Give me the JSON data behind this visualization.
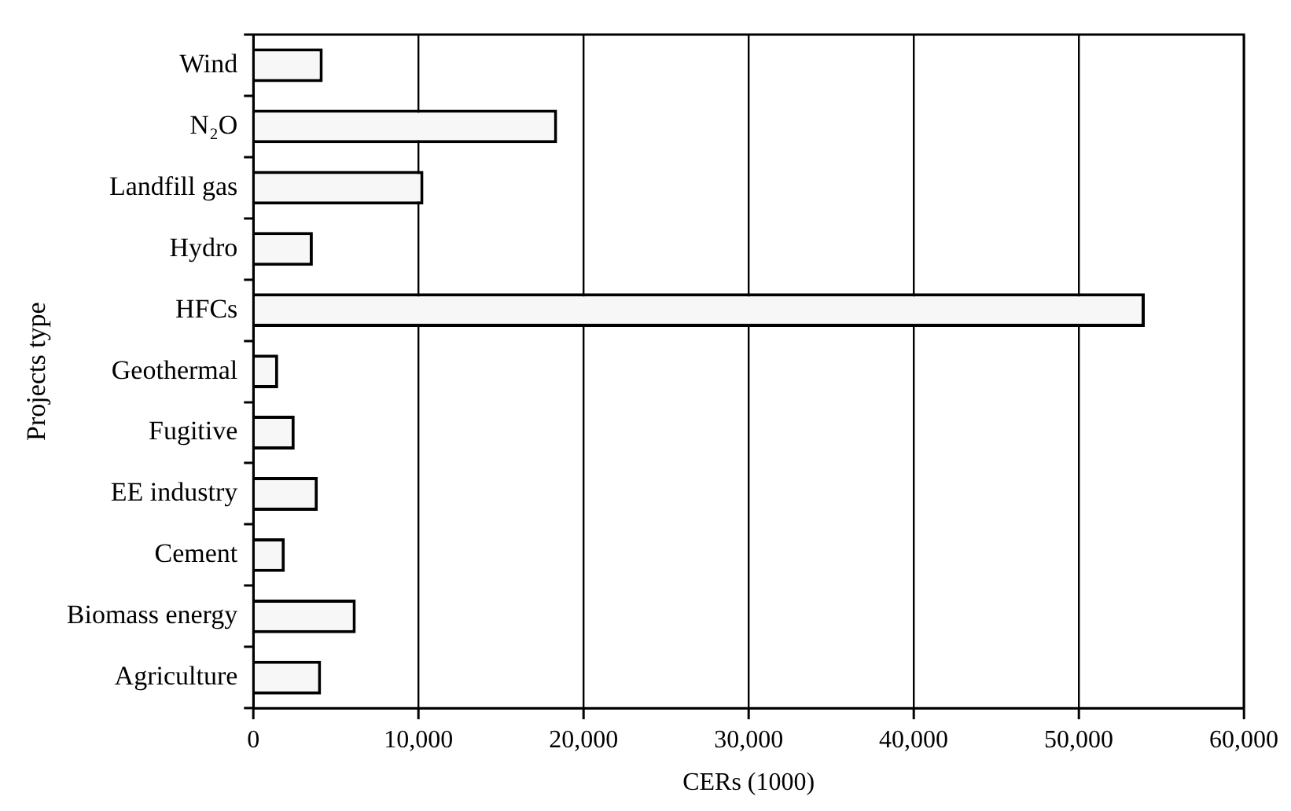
{
  "chart_data": {
    "type": "bar",
    "orientation": "horizontal",
    "xlabel": "CERs (1000)",
    "ylabel": "Projects type",
    "categories": [
      "Wind",
      "N₂O",
      "Landfill gas",
      "Hydro",
      "HFCs",
      "Geothermal",
      "Fugitive",
      "EE industry",
      "Cement",
      "Biomass energy",
      "Agriculture"
    ],
    "values": [
      4200,
      18400,
      10300,
      3600,
      54000,
      1500,
      2500,
      3900,
      1900,
      6200,
      4100
    ],
    "color": "#f7f7f7",
    "xlim": [
      0,
      60000
    ],
    "xticks": [
      {
        "value": 0,
        "label": "0"
      },
      {
        "value": 10000,
        "label": "10,000"
      },
      {
        "value": 20000,
        "label": "20,000"
      },
      {
        "value": 30000,
        "label": "30,000"
      },
      {
        "value": 40000,
        "label": "40,000"
      },
      {
        "value": 50000,
        "label": "50,000"
      },
      {
        "value": 60000,
        "label": "60,000"
      }
    ],
    "grid": "x",
    "legend": false
  }
}
